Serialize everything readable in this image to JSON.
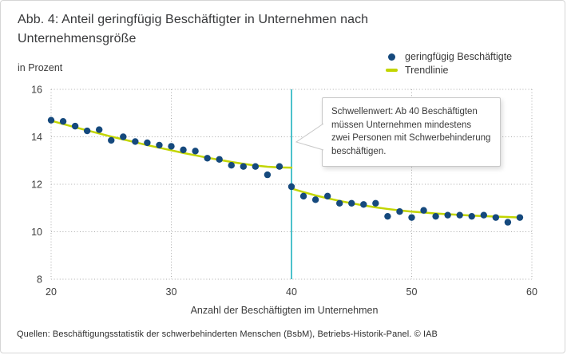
{
  "header": {
    "title_lines": [
      "Abb. 4: Anteil geringfügig Beschäftigter in Unternehmen nach",
      "Unternehmensgröße"
    ],
    "subtitle": "in Prozent"
  },
  "legend": {
    "items": [
      {
        "label": "geringfügig Beschäftigte",
        "marker": "dot-marker",
        "color": "#15497d"
      },
      {
        "label": "Trendlinie",
        "marker": "line-marker",
        "color": "#c2d500"
      }
    ]
  },
  "annotation": {
    "text": "Schwellenwert: Ab 40 Beschäftigten müssen Unternehmen mindestens zwei Personen mit Schwerbehinderung beschäftigen."
  },
  "footer": {
    "source": "Quellen: Beschäftigungsstatistik der schwerbehinderten Menschen (BsbM), Betriebs-Historik-Panel. © IAB"
  },
  "colors": {
    "scatter": "#15497d",
    "trend": "#c2d500",
    "threshold": "#4cc2cb",
    "grid": "#ababab",
    "tick_text": "#3c3c3c",
    "title_text": "#37383a",
    "card_border": "#d6d6d6"
  },
  "chart_data": {
    "type": "scatter",
    "title": "Abb. 4: Anteil geringfügig Beschäftigter in Unternehmen nach Unternehmensgröße",
    "unit": "in Prozent",
    "xlabel": "Anzahl der Beschäftigten im Unternehmen",
    "ylabel": "",
    "xlim": [
      20,
      60
    ],
    "ylim": [
      8,
      16
    ],
    "x_ticks": [
      20,
      30,
      40,
      50,
      60
    ],
    "y_ticks": [
      16,
      14,
      12,
      10,
      8
    ],
    "grid": "dotted",
    "legend_position": "top-right",
    "threshold_x": 40,
    "series": [
      {
        "name": "geringfügig Beschäftigte",
        "type": "scatter",
        "color": "#15497d",
        "x": [
          20,
          21,
          22,
          23,
          24,
          25,
          26,
          27,
          28,
          29,
          30,
          31,
          32,
          33,
          34,
          35,
          36,
          37,
          38,
          39,
          40,
          41,
          42,
          43,
          44,
          45,
          46,
          47,
          48,
          49,
          50,
          51,
          52,
          53,
          54,
          55,
          56,
          57,
          58,
          59
        ],
        "y": [
          14.7,
          14.65,
          14.45,
          14.25,
          14.3,
          13.85,
          14.0,
          13.8,
          13.75,
          13.65,
          13.6,
          13.45,
          13.4,
          13.1,
          13.05,
          12.8,
          12.75,
          12.75,
          12.4,
          12.75,
          11.9,
          11.5,
          11.35,
          11.5,
          11.2,
          11.2,
          11.15,
          11.2,
          10.65,
          10.85,
          10.6,
          10.9,
          10.65,
          10.7,
          10.7,
          10.65,
          10.7,
          10.6,
          10.4,
          10.6
        ]
      },
      {
        "name": "Trendlinie",
        "type": "line",
        "color": "#c2d500",
        "segments": [
          {
            "x": [
              20,
              21,
              22,
              23,
              24,
              25,
              26,
              27,
              28,
              29,
              30,
              31,
              32,
              33,
              34,
              35,
              36,
              37,
              38,
              39,
              40
            ],
            "y": [
              14.68,
              14.54,
              14.4,
              14.27,
              14.14,
              14.01,
              13.89,
              13.77,
              13.65,
              13.54,
              13.43,
              13.32,
              13.22,
              13.12,
              13.03,
              12.94,
              12.86,
              12.79,
              12.74,
              12.71,
              12.7
            ]
          },
          {
            "x": [
              40,
              41,
              42,
              43,
              44,
              45,
              46,
              47,
              48,
              49,
              50,
              51,
              52,
              53,
              54,
              55,
              56,
              57,
              58,
              59
            ],
            "y": [
              11.82,
              11.67,
              11.53,
              11.41,
              11.3,
              11.2,
              11.11,
              11.03,
              10.96,
              10.9,
              10.85,
              10.81,
              10.77,
              10.74,
              10.71,
              10.68,
              10.66,
              10.64,
              10.62,
              10.6
            ]
          }
        ]
      }
    ]
  }
}
